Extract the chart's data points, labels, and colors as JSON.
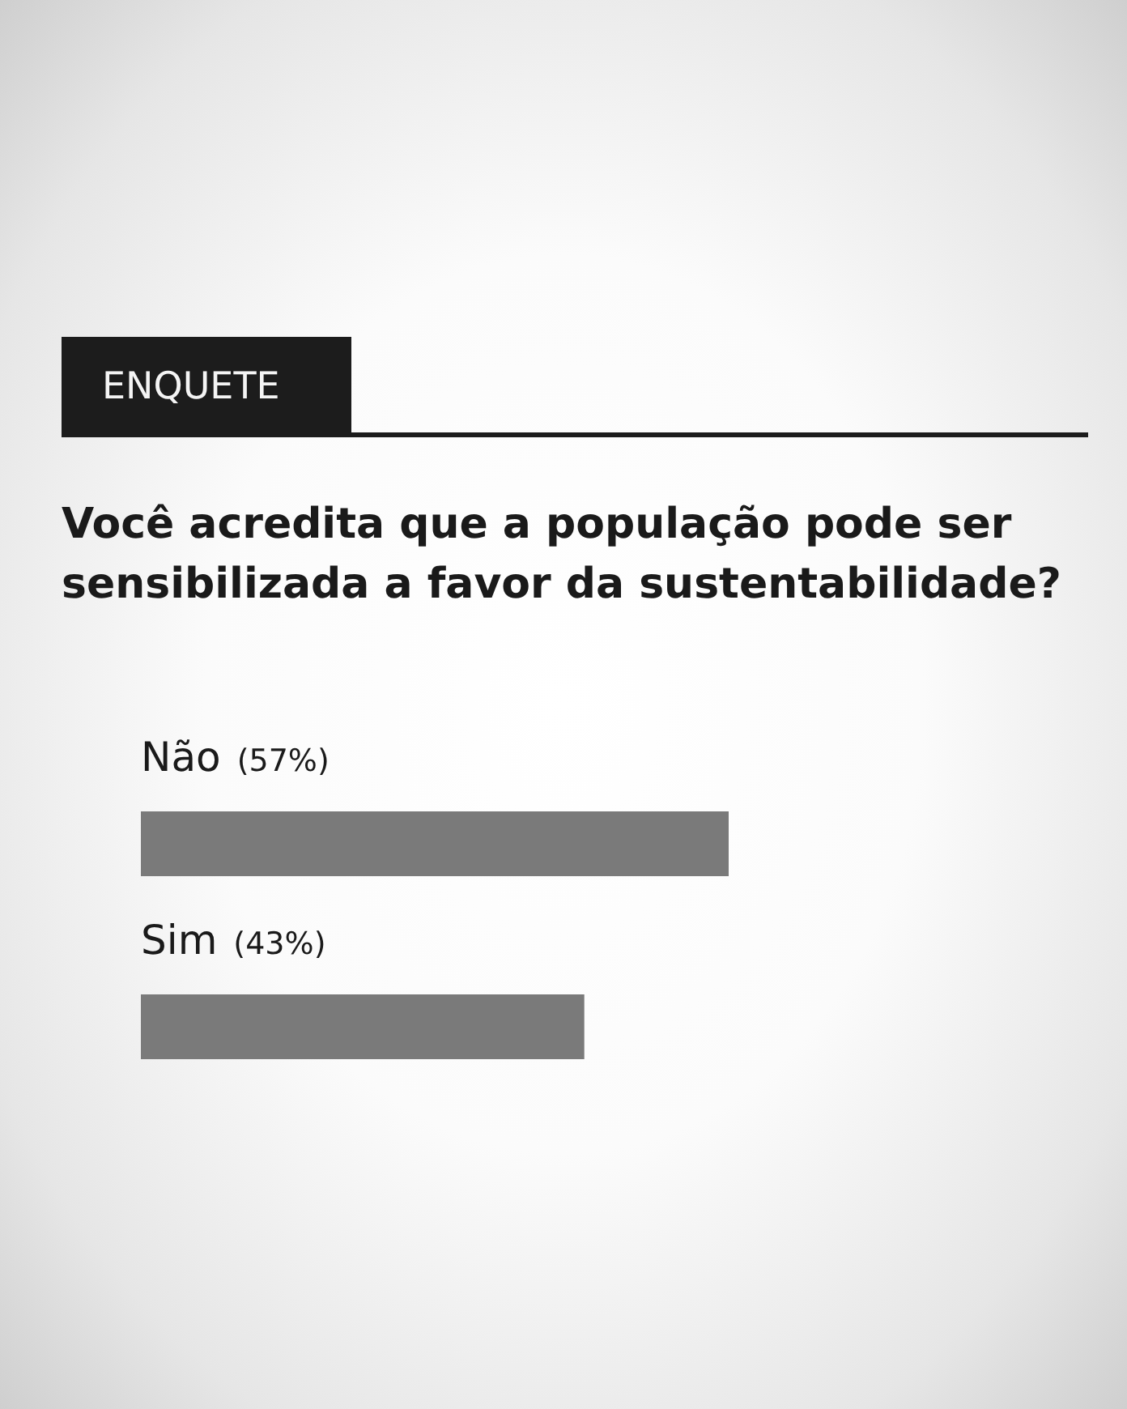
{
  "chart_data": {
    "type": "bar",
    "title": "ENQUETE",
    "subtitle": "Você acredita que a população pode ser sensibilizada a favor da sustentabilidade?",
    "orientation": "horizontal",
    "categories": [
      "Não",
      "Sim"
    ],
    "values": [
      57,
      43
    ],
    "value_labels": [
      "(57%)",
      "(43%)"
    ],
    "color": "#7a7a7a",
    "tick_labels": "y"
  }
}
